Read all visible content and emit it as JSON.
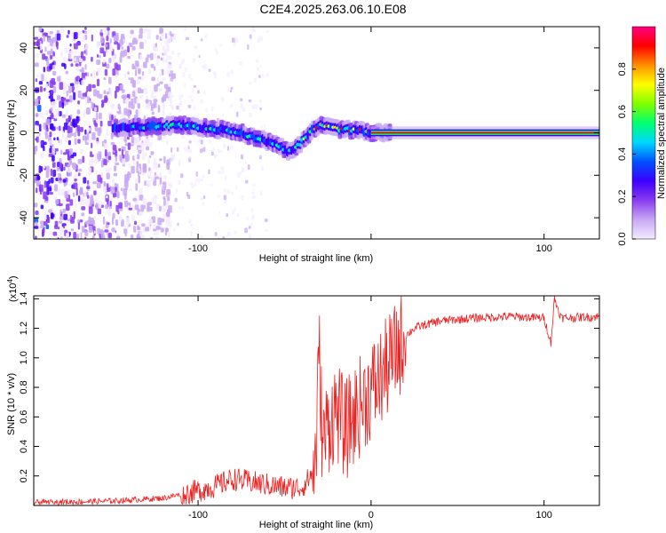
{
  "figure_title": "C2E4.2025.263.06.10.E08",
  "chart_data": [
    {
      "type": "heatmap",
      "title": "C2E4.2025.263.06.10.E08",
      "xlabel": "Height of straight line (km)",
      "ylabel": "Frequency (Hz)",
      "xlim": [
        -195,
        132
      ],
      "ylim": [
        -50,
        50
      ],
      "x_ticks": [
        -100,
        0,
        100
      ],
      "x_tick_labels": [
        "-100",
        "",
        "100"
      ],
      "y_ticks": [
        -40,
        -20,
        0,
        20,
        40
      ],
      "y_tick_labels": [
        "-40",
        "-20",
        "0",
        "20",
        "40"
      ],
      "colorbar": {
        "label": "Normalized spectral amplitude",
        "range": [
          0,
          1
        ],
        "ticks": [
          0.0,
          0.2,
          0.4,
          0.6,
          0.8
        ],
        "tick_labels": [
          "0.0",
          "0.2",
          "0.4",
          "0.6",
          "0.8"
        ],
        "colors": [
          "#f4ecff",
          "#c8a8f4",
          "#8a3cf0",
          "#3c00ff",
          "#0050ff",
          "#00d8ff",
          "#00ff70",
          "#80ff00",
          "#ffff00",
          "#ff9000",
          "#ff0000",
          "#ff0080"
        ]
      },
      "ridge": {
        "x": [
          -150,
          -130,
          -110,
          -95,
          -80,
          -65,
          -55,
          -48,
          -42,
          -38,
          -33,
          -28,
          -22,
          -15,
          -8,
          0,
          10,
          20,
          132
        ],
        "y": [
          2,
          3,
          3.5,
          2,
          1,
          -3,
          -6,
          -9,
          -5,
          -2,
          3,
          3.5,
          2,
          1.5,
          1,
          0,
          0,
          0,
          0
        ]
      }
    },
    {
      "type": "line",
      "xlabel": "Height of straight line (km)",
      "ylabel": "SNR (10 * v/v)",
      "multiplier_label": "(x10",
      "multiplier_exponent": "4",
      "xlim": [
        -195,
        132
      ],
      "ylim": [
        0,
        1.42
      ],
      "x_ticks": [
        -100,
        0,
        100
      ],
      "x_tick_labels": [
        "-100",
        "0",
        "100"
      ],
      "y_ticks": [
        0.2,
        0.4,
        0.6,
        0.8,
        1.0,
        1.2,
        1.4
      ],
      "y_tick_labels": [
        "0.2",
        "0.4",
        "0.6",
        "0.8",
        "1.0",
        "1.2",
        "1.4"
      ],
      "series": [
        {
          "name": "SNR",
          "color": "#ee2020",
          "x": [
            -195,
            -150,
            -120,
            -100,
            -90,
            -80,
            -70,
            -60,
            -50,
            -40,
            -35,
            -32,
            -30,
            -28,
            -25,
            -20,
            -15,
            -10,
            -5,
            0,
            5,
            10,
            15,
            20,
            25,
            30,
            40,
            60,
            80,
            100,
            104,
            106,
            110,
            132
          ],
          "y": [
            0.02,
            0.03,
            0.05,
            0.1,
            0.13,
            0.18,
            0.16,
            0.14,
            0.12,
            0.12,
            0.2,
            0.3,
            1.05,
            0.4,
            0.55,
            0.65,
            0.5,
            0.6,
            0.7,
            0.78,
            0.85,
            0.95,
            1.05,
            1.15,
            1.2,
            1.22,
            1.25,
            1.27,
            1.28,
            1.27,
            1.1,
            1.4,
            1.27,
            1.28
          ]
        }
      ]
    }
  ]
}
